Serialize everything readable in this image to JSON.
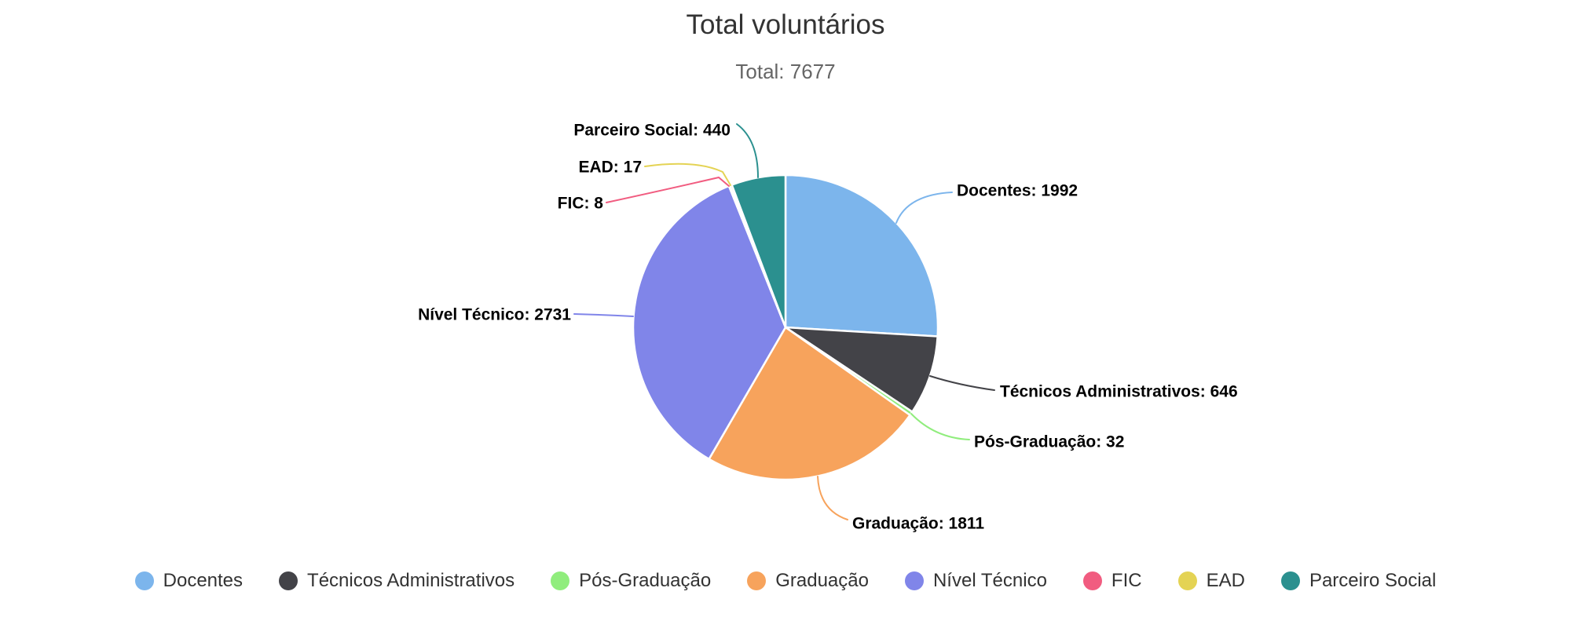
{
  "title": "Total voluntários",
  "subtitle": "Total: 7677",
  "chart_data": {
    "type": "pie",
    "title": "Total voluntários",
    "subtitle": "Total: 7677",
    "total": 7677,
    "label_format": "name: value",
    "legend_position": "bottom",
    "start_angle_deg": 0,
    "direction": "clockwise",
    "series": [
      {
        "name": "Docentes",
        "value": 1992,
        "color": "#7cb5ec"
      },
      {
        "name": "Técnicos Administrativos",
        "value": 646,
        "color": "#434348"
      },
      {
        "name": "Pós-Graduação",
        "value": 32,
        "color": "#90ed7d"
      },
      {
        "name": "Graduação",
        "value": 1811,
        "color": "#f7a35c"
      },
      {
        "name": "Nível Técnico",
        "value": 2731,
        "color": "#8085e9"
      },
      {
        "name": "FIC",
        "value": 8,
        "color": "#f15c80"
      },
      {
        "name": "EAD",
        "value": 17,
        "color": "#e4d354"
      },
      {
        "name": "Parceiro Social",
        "value": 440,
        "color": "#2b908f"
      }
    ]
  }
}
